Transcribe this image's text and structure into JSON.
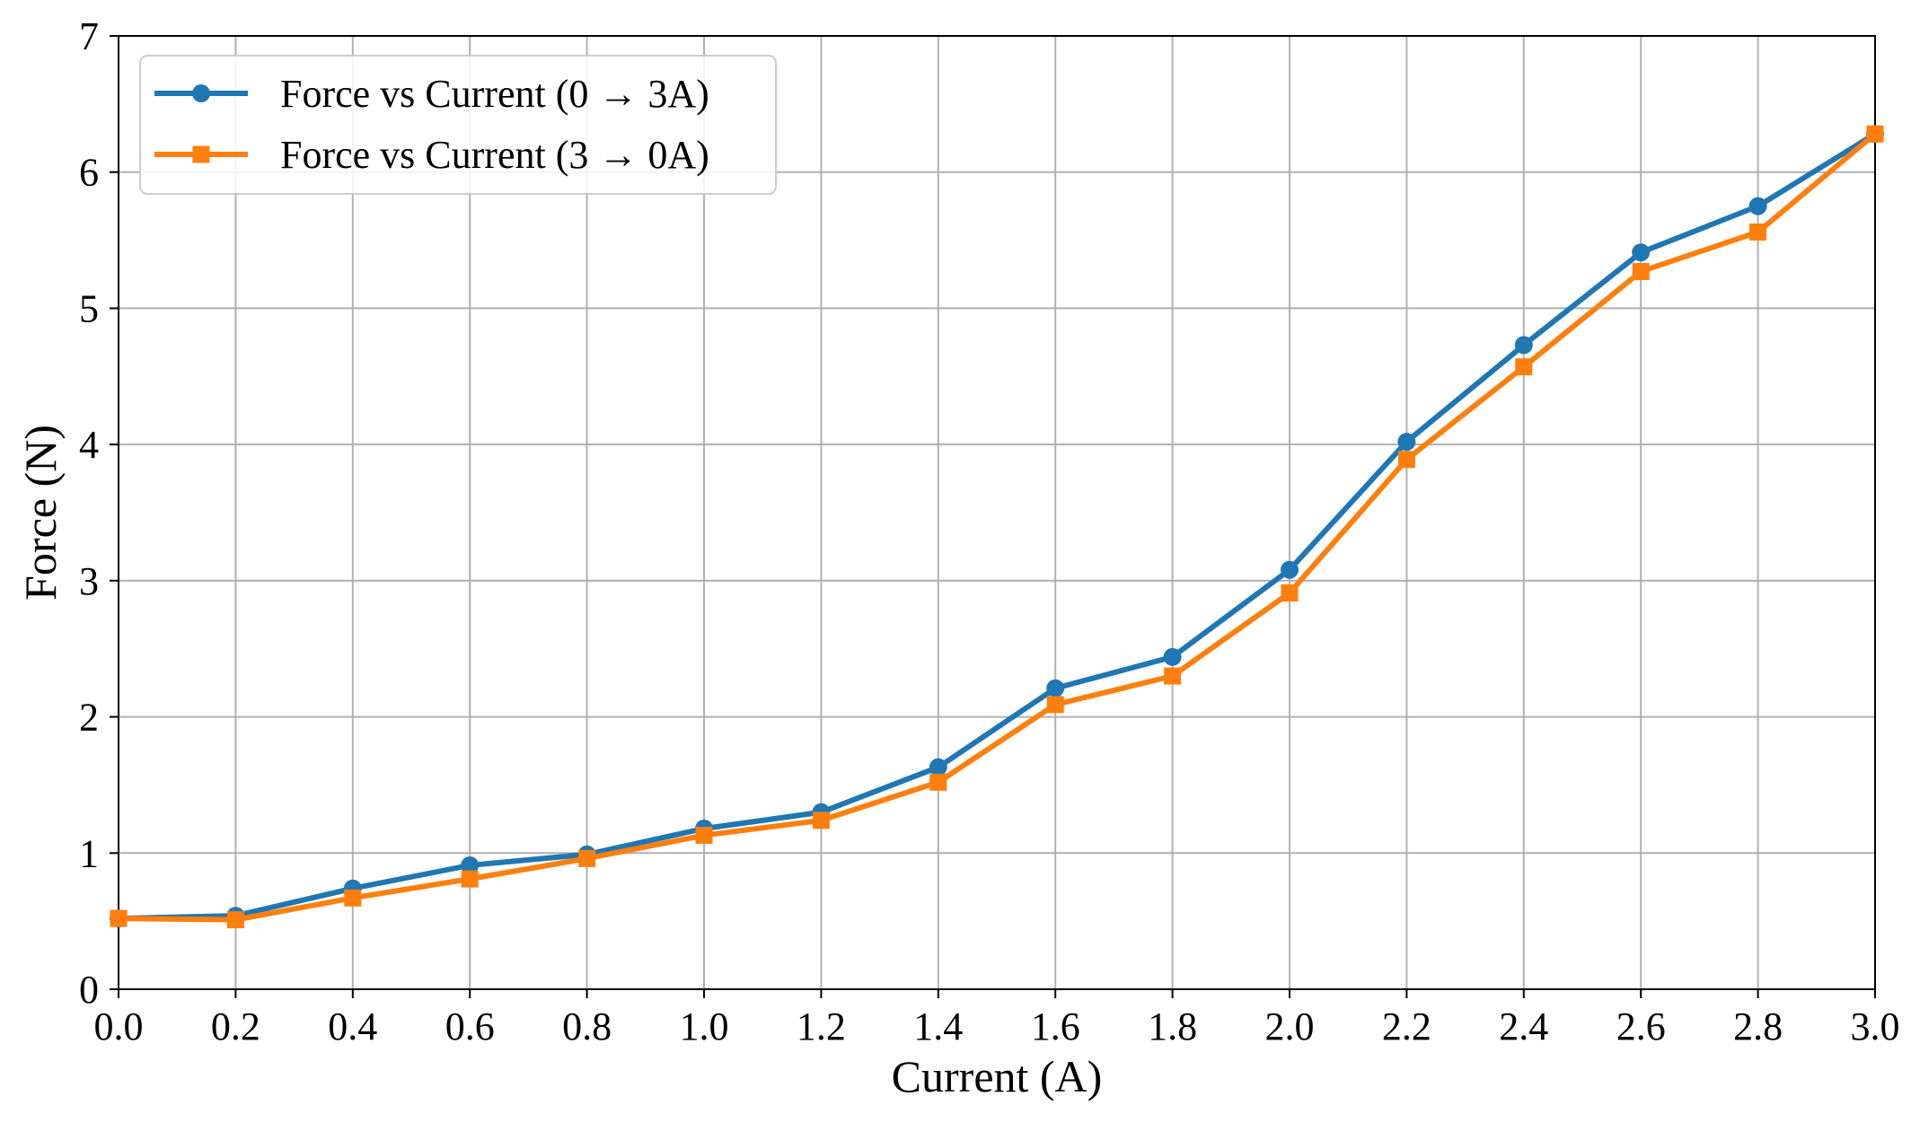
{
  "chart_data": {
    "type": "line",
    "xlabel": "Current (A)",
    "ylabel": "Force (N)",
    "xlim": [
      0,
      3
    ],
    "ylim": [
      0,
      7
    ],
    "xticks": [
      "0.0",
      "0.2",
      "0.4",
      "0.6",
      "0.8",
      "1.0",
      "1.2",
      "1.4",
      "1.6",
      "1.8",
      "2.0",
      "2.2",
      "2.4",
      "2.6",
      "2.8",
      "3.0"
    ],
    "yticks": [
      "0",
      "1",
      "2",
      "3",
      "4",
      "5",
      "6",
      "7"
    ],
    "grid": true,
    "legend_position": "top-left",
    "x": [
      0.0,
      0.2,
      0.4,
      0.6,
      0.8,
      1.0,
      1.2,
      1.4,
      1.6,
      1.8,
      2.0,
      2.2,
      2.4,
      2.6,
      2.8,
      3.0
    ],
    "series": [
      {
        "name": "Force vs Current (0 → 3A)",
        "color": "#1f77b4",
        "marker": "circle",
        "values": [
          0.52,
          0.54,
          0.74,
          0.91,
          0.99,
          1.18,
          1.3,
          1.63,
          2.21,
          2.44,
          3.08,
          4.02,
          4.73,
          5.41,
          5.75,
          6.28
        ]
      },
      {
        "name": "Force vs Current (3 → 0A)",
        "color": "#ff7f0e",
        "marker": "square",
        "values": [
          0.52,
          0.51,
          0.67,
          0.81,
          0.96,
          1.13,
          1.24,
          1.52,
          2.09,
          2.3,
          2.91,
          3.89,
          4.57,
          5.27,
          5.56,
          6.28
        ]
      }
    ]
  }
}
